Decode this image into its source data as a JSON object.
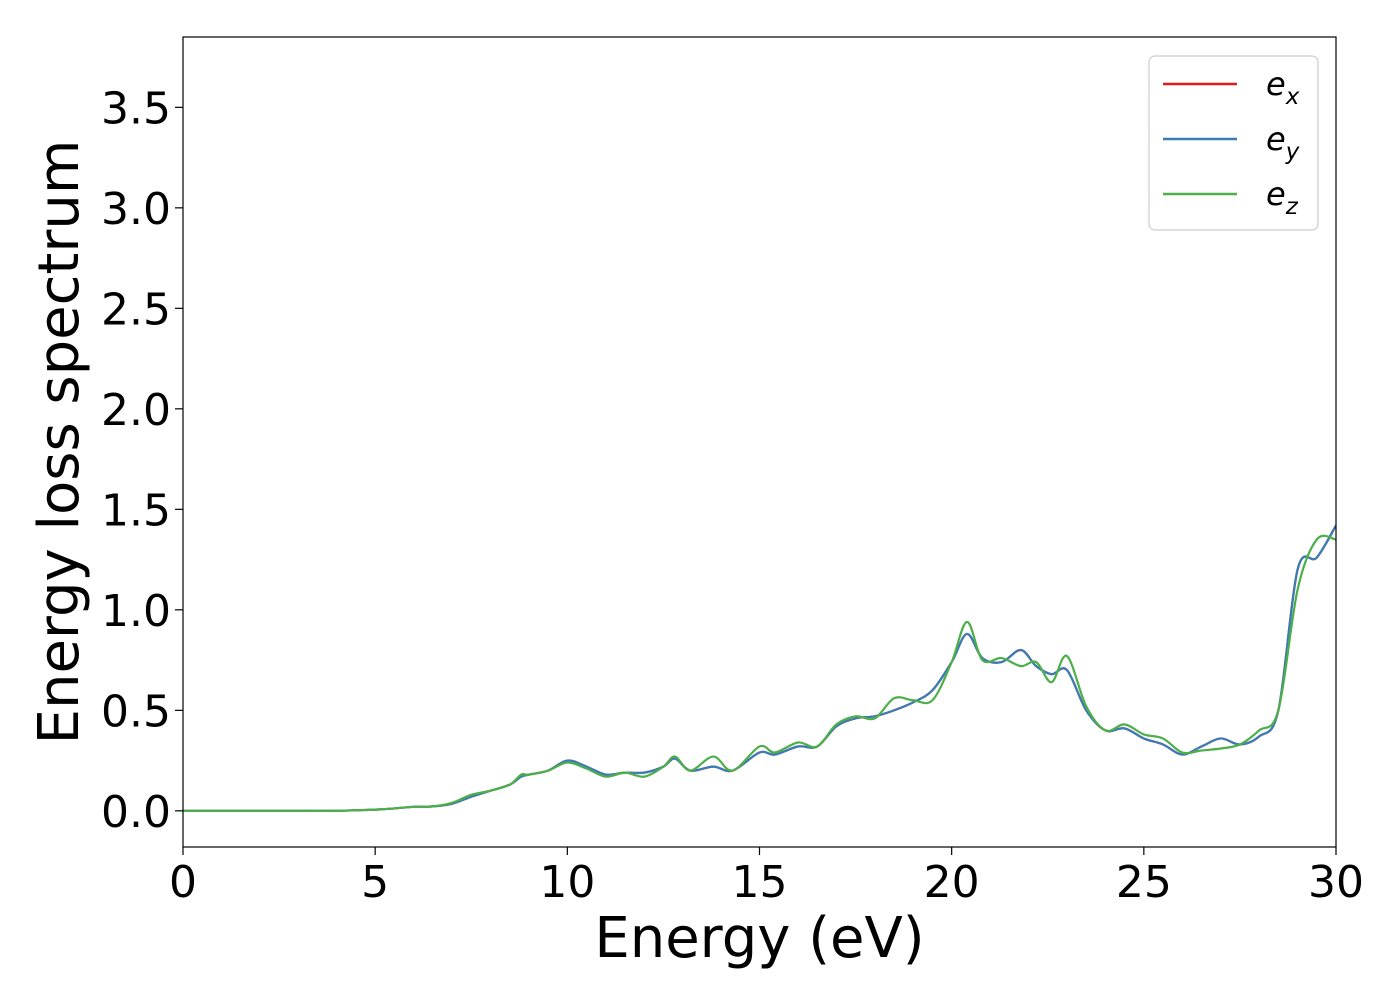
{
  "chart_data": {
    "type": "line",
    "xlabel": "Energy (eV)",
    "ylabel": "Energy loss spectrum",
    "xlim": [
      0,
      30
    ],
    "ylim": [
      -0.18,
      3.85
    ],
    "xticks": [
      "0",
      "5",
      "10",
      "15",
      "20",
      "25",
      "30"
    ],
    "yticks": [
      "0.0",
      "0.5",
      "1.0",
      "1.5",
      "2.0",
      "2.5",
      "3.0",
      "3.5"
    ],
    "grid": false,
    "legend_position": "top-right",
    "x": [
      0,
      1,
      2,
      3,
      4,
      4.5,
      5,
      5.5,
      6,
      6.5,
      7,
      7.5,
      8,
      8.5,
      8.8,
      9,
      9.5,
      10,
      10.5,
      11,
      11.5,
      12,
      12.5,
      12.8,
      13.2,
      13.8,
      14.3,
      15,
      15.4,
      16,
      16.5,
      17,
      17.5,
      18,
      18.5,
      19,
      19.5,
      20,
      20.4,
      20.8,
      21.3,
      21.8,
      22.2,
      22.6,
      23,
      23.5,
      24,
      24.5,
      25,
      25.5,
      26,
      26.5,
      27,
      27.5,
      28,
      28.5,
      29,
      29.5,
      30
    ],
    "series": [
      {
        "name": "e_x",
        "label_main": "e",
        "label_sub": "x",
        "color": "#e41a1c",
        "values": [
          0,
          0,
          0,
          0,
          0,
          0.003,
          0.006,
          0.012,
          0.02,
          0.022,
          0.035,
          0.07,
          0.1,
          0.13,
          0.17,
          0.18,
          0.2,
          0.25,
          0.22,
          0.18,
          0.19,
          0.19,
          0.22,
          0.26,
          0.2,
          0.22,
          0.2,
          0.29,
          0.28,
          0.32,
          0.32,
          0.42,
          0.46,
          0.47,
          0.5,
          0.54,
          0.6,
          0.74,
          0.88,
          0.76,
          0.74,
          0.8,
          0.72,
          0.68,
          0.7,
          0.5,
          0.4,
          0.41,
          0.36,
          0.33,
          0.28,
          0.32,
          0.36,
          0.33,
          0.37,
          0.5,
          1.2,
          1.26,
          1.42
        ]
      },
      {
        "name": "e_y",
        "label_main": "e",
        "label_sub": "y",
        "color": "#377eb8",
        "values": [
          0,
          0,
          0,
          0,
          0,
          0.003,
          0.006,
          0.012,
          0.02,
          0.022,
          0.035,
          0.07,
          0.1,
          0.13,
          0.17,
          0.18,
          0.2,
          0.25,
          0.22,
          0.18,
          0.19,
          0.19,
          0.22,
          0.26,
          0.2,
          0.22,
          0.2,
          0.29,
          0.28,
          0.32,
          0.32,
          0.42,
          0.46,
          0.47,
          0.5,
          0.54,
          0.6,
          0.74,
          0.88,
          0.76,
          0.74,
          0.8,
          0.72,
          0.68,
          0.7,
          0.5,
          0.4,
          0.41,
          0.36,
          0.33,
          0.28,
          0.32,
          0.36,
          0.33,
          0.37,
          0.5,
          1.2,
          1.26,
          1.42
        ]
      },
      {
        "name": "e_z",
        "label_main": "e",
        "label_sub": "z",
        "color": "#4daf4a",
        "values": [
          0,
          0,
          0,
          0,
          0,
          0.003,
          0.006,
          0.012,
          0.02,
          0.022,
          0.04,
          0.08,
          0.1,
          0.13,
          0.18,
          0.18,
          0.2,
          0.24,
          0.21,
          0.17,
          0.19,
          0.17,
          0.22,
          0.27,
          0.2,
          0.27,
          0.2,
          0.32,
          0.29,
          0.34,
          0.32,
          0.43,
          0.47,
          0.46,
          0.56,
          0.55,
          0.55,
          0.74,
          0.94,
          0.75,
          0.76,
          0.72,
          0.74,
          0.64,
          0.77,
          0.52,
          0.4,
          0.43,
          0.38,
          0.36,
          0.29,
          0.3,
          0.31,
          0.33,
          0.4,
          0.5,
          1.1,
          1.35,
          1.35
        ]
      }
    ]
  }
}
